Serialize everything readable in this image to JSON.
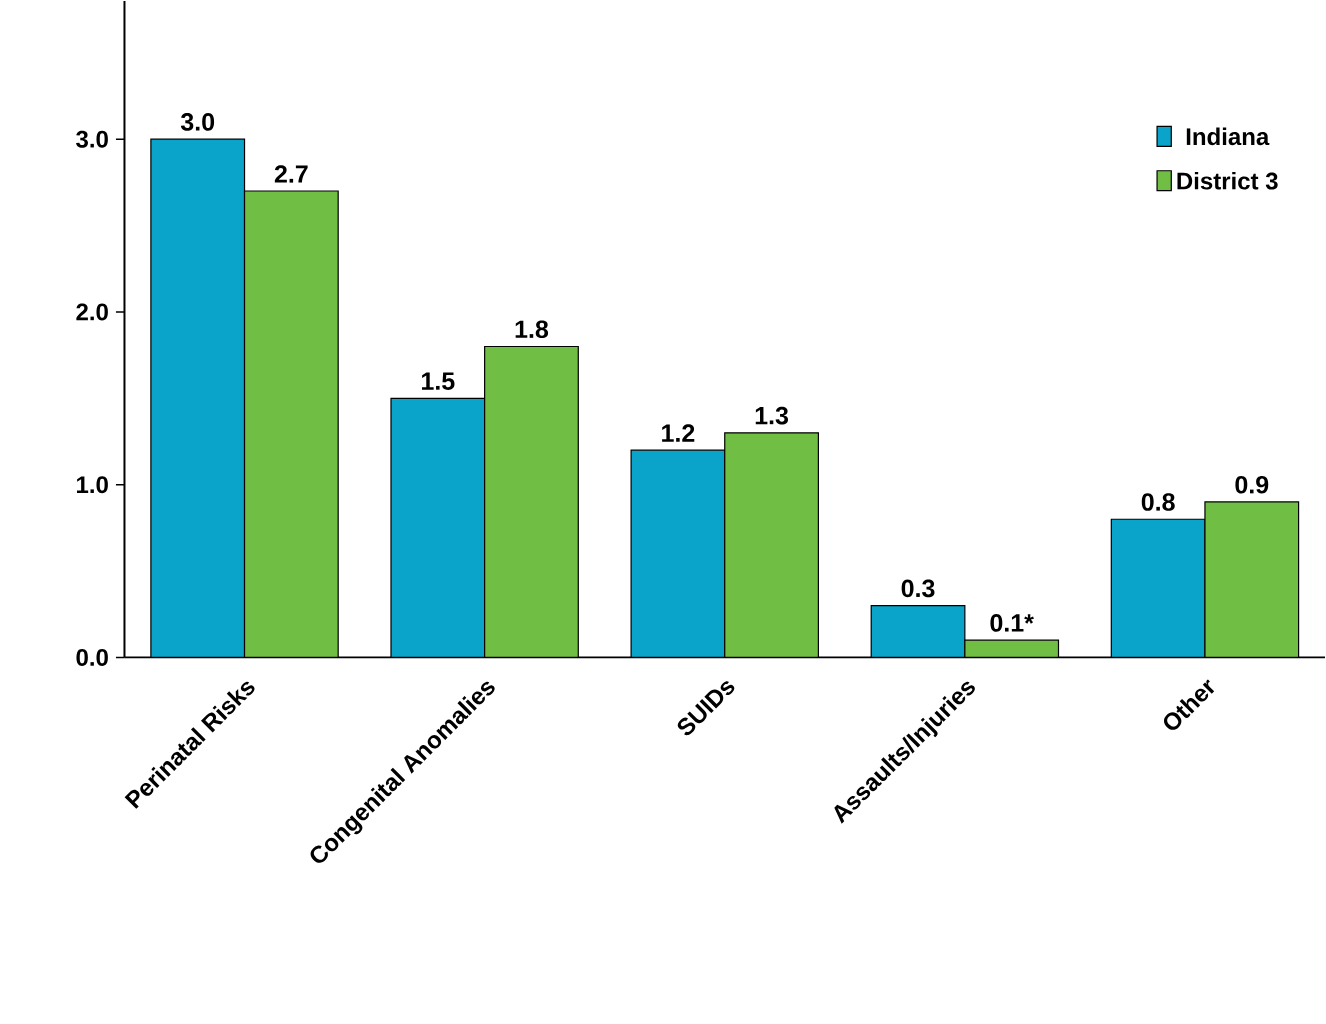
{
  "chart_data": {
    "type": "bar",
    "categories": [
      "Perinatal Risks",
      "Congenital Anomalies",
      "SUIDs",
      "Assaults/Injuries",
      "Other"
    ],
    "series": [
      {
        "name": "Indiana",
        "color": "#0aa3c9",
        "values": [
          3.0,
          1.5,
          1.2,
          0.3,
          0.8
        ],
        "value_labels": [
          "3.0",
          "1.5",
          "1.2",
          "0.3",
          "0.8"
        ]
      },
      {
        "name": "District 3",
        "color": "#70bf44",
        "values": [
          2.7,
          1.8,
          1.3,
          0.1,
          0.9
        ],
        "value_labels": [
          "2.7",
          "1.8",
          "1.3",
          "0.1*",
          "0.9"
        ]
      }
    ],
    "ylim": [
      0,
      3.8
    ],
    "yticks": [
      {
        "value": 0,
        "label": "0.0"
      },
      {
        "value": 1,
        "label": "1.0"
      },
      {
        "value": 2,
        "label": "2.0"
      },
      {
        "value": 3,
        "label": "3.0"
      }
    ],
    "legend": "top right"
  }
}
